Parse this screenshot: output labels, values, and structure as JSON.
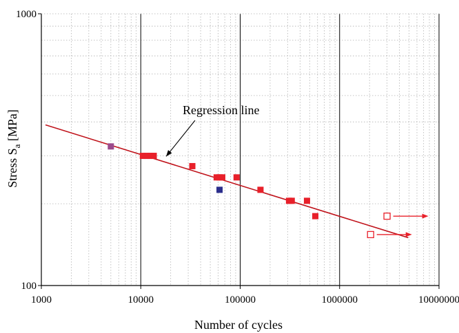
{
  "chart_data": {
    "type": "scatter",
    "title": "",
    "xlabel": "Number of cycles",
    "ylabel_main": "Stress S",
    "ylabel_sub": "a",
    "ylabel_unit": " [MPa]",
    "xscale": "log",
    "yscale": "log",
    "xlim": [
      1000,
      10000000
    ],
    "ylim": [
      100,
      1000
    ],
    "x_tick_labels": [
      "1000",
      "10000",
      "100000",
      "1000000",
      "10000000"
    ],
    "y_tick_labels": [
      "100",
      "1000"
    ],
    "grid": true,
    "series": [
      {
        "marker": "filled-square",
        "color": "#e8202a",
        "points": [
          [
            10500,
            300
          ],
          [
            11500,
            300
          ],
          [
            12500,
            300
          ],
          [
            13500,
            300
          ],
          [
            33000,
            275
          ],
          [
            58000,
            250
          ],
          [
            62000,
            250
          ],
          [
            66000,
            250
          ],
          [
            92000,
            250
          ],
          [
            160000,
            225
          ],
          [
            310000,
            205
          ],
          [
            330000,
            205
          ],
          [
            470000,
            205
          ],
          [
            570000,
            180
          ]
        ]
      },
      {
        "marker": "filled-square",
        "color": "#9b4a8c",
        "points": [
          [
            5000,
            325
          ]
        ]
      },
      {
        "marker": "filled-square",
        "color": "#2b2e8c",
        "points": [
          [
            62000,
            225
          ]
        ]
      },
      {
        "marker": "open-square",
        "color": "#e8202a",
        "runout": true,
        "points": [
          [
            3000000,
            180
          ],
          [
            2050000,
            154
          ]
        ]
      }
    ],
    "regression_line": {
      "color": "#c0141c",
      "points": [
        [
          1100,
          390
        ],
        [
          4900000,
          150
        ]
      ]
    },
    "annotations": [
      {
        "text": "Regression line",
        "points_to": [
          18000,
          285
        ]
      }
    ],
    "colors": {
      "axis": "#000000",
      "major_grid": "#000000",
      "minor_grid": "#b0b0b0",
      "runout_arrow": "#e8202a"
    }
  }
}
